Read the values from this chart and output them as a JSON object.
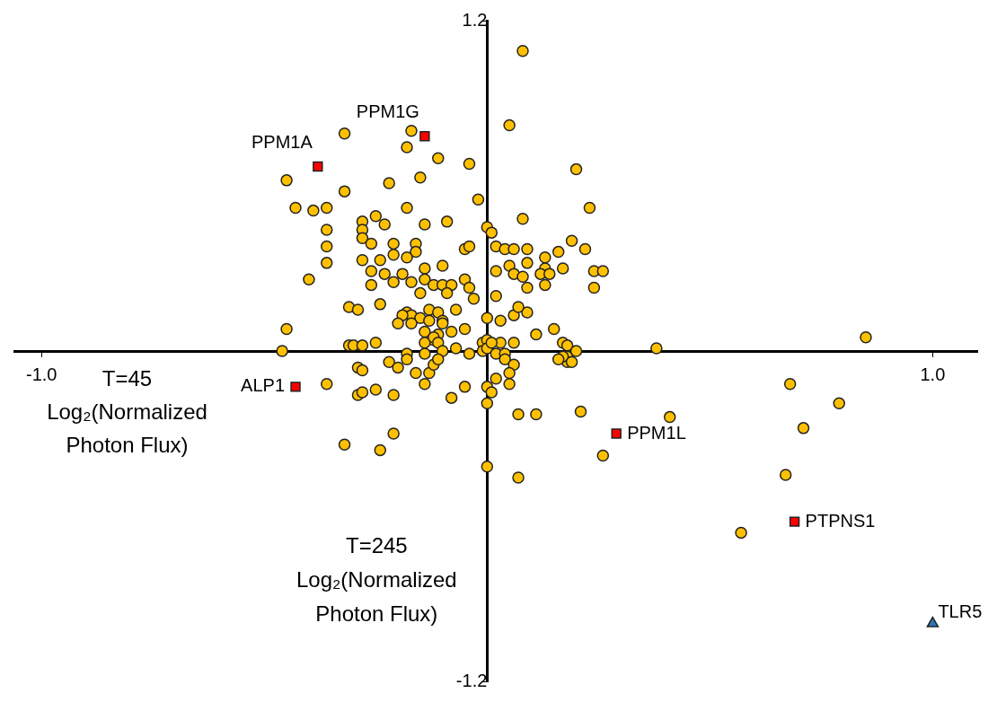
{
  "chart_data": {
    "type": "scatter",
    "xlabel": "T=45\nLog₂(Normalized\nPhoton Flux)",
    "ylabel": "T=245\nLog₂(Normalized\nPhoton Flux)",
    "xlim": [
      -1.06,
      1.1
    ],
    "ylim": [
      -1.2,
      1.2
    ],
    "xticks": [
      {
        "value": -1,
        "label": "-1.0"
      },
      {
        "value": 1,
        "label": "1.0"
      }
    ],
    "yticks": [
      -1.2,
      1.2
    ],
    "series": [
      {
        "color": "#ffc000",
        "marker": "circle",
        "x": [
          0.08,
          0.05,
          -0.17,
          -0.32,
          -0.18,
          -0.11,
          -0.15,
          -0.04,
          0.2,
          -0.45,
          -0.32,
          -0.22,
          -0.02,
          0.23,
          -0.43,
          -0.39,
          -0.36,
          -0.18,
          -0.09,
          0.08,
          0,
          0.01,
          -0.36,
          -0.28,
          -0.25,
          -0.23,
          -0.28,
          -0.14,
          0.19,
          0.22,
          -0.36,
          -0.05,
          -0.04,
          0.02,
          0.04,
          0.06,
          0.09,
          0.13,
          0.16,
          -0.36,
          -0.4,
          -0.28,
          -0.26,
          -0.21,
          -0.16,
          -0.16,
          -0.21,
          -0.28,
          -0.24,
          -0.18,
          -0.26,
          -0.23,
          -0.19,
          -0.14,
          -0.14,
          -0.1,
          -0.05,
          0.05,
          0.09,
          0.13,
          0.17,
          0.24,
          0.26,
          -0.26,
          -0.21,
          -0.17,
          -0.12,
          -0.1,
          -0.08,
          -0.04,
          0.02,
          0.06,
          0.08,
          0.12,
          0.14,
          0.09,
          0.13,
          0.24,
          0.09,
          -0.15,
          -0.09,
          -0.03,
          0.02,
          -0.31,
          -0.29,
          -0.24,
          -0.18,
          -0.13,
          -0.11,
          -0.17,
          -0.15,
          -0.13,
          -0.1,
          -0.07,
          -0.19,
          -0.2,
          -0.17,
          -0.1,
          -0.14,
          -0.11,
          -0.08,
          -0.12,
          -0.05,
          -0.01,
          0,
          0.03,
          0.06,
          0.07,
          0.11,
          0.15,
          0.17,
          0.18,
          0.18,
          0.18,
          0.17,
          0.16,
          0.19,
          0.2,
          -0.45,
          -0.46,
          -0.31,
          -0.3,
          -0.28,
          -0.25,
          -0.18,
          -0.14,
          -0.12,
          -0.11,
          -0.1,
          -0.07,
          -0.04,
          -0.01,
          0.03,
          0.06,
          0,
          0,
          0.01,
          0.02,
          0.04,
          0.38,
          0.85,
          -0.29,
          -0.28,
          -0.22,
          -0.2,
          -0.18,
          -0.14,
          -0.16,
          -0.13,
          -0.12,
          -0.11,
          0.04,
          0.06,
          -0.36,
          -0.29,
          -0.28,
          -0.25,
          -0.21,
          -0.14,
          -0.05,
          0,
          0.01,
          0.02,
          0.05,
          0.05,
          -0.08,
          0,
          0.07,
          0.11,
          0.21,
          0.41,
          -0.32,
          -0.21,
          -0.24,
          0.26,
          0,
          0.07,
          0.68,
          0.79,
          0.71,
          0.67,
          0.57
        ],
        "values": [
          1.09,
          0.82,
          0.8,
          0.79,
          0.74,
          0.7,
          0.63,
          0.68,
          0.66,
          0.62,
          0.58,
          0.61,
          0.55,
          0.52,
          0.52,
          0.51,
          0.52,
          0.52,
          0.47,
          0.48,
          0.45,
          0.43,
          0.44,
          0.47,
          0.49,
          0.46,
          0.44,
          0.46,
          0.4,
          0.37,
          0.38,
          0.37,
          0.38,
          0.38,
          0.37,
          0.37,
          0.37,
          0.34,
          0.36,
          0.32,
          0.26,
          0.41,
          0.39,
          0.39,
          0.39,
          0.36,
          0.35,
          0.33,
          0.33,
          0.34,
          0.29,
          0.28,
          0.28,
          0.3,
          0.26,
          0.31,
          0.26,
          0.31,
          0.32,
          0.3,
          0.3,
          0.29,
          0.29,
          0.24,
          0.25,
          0.25,
          0.24,
          0.24,
          0.24,
          0.23,
          0.29,
          0.28,
          0.27,
          0.28,
          0.28,
          0.23,
          0.24,
          0.23,
          0.14,
          0.21,
          0.21,
          0.19,
          0.2,
          0.16,
          0.15,
          0.17,
          0.14,
          0.15,
          0.14,
          0.13,
          0.12,
          0.11,
          0.11,
          0.15,
          0.13,
          0.1,
          0.1,
          0.1,
          0.07,
          0.06,
          0.07,
          0.04,
          0.08,
          0.03,
          0.12,
          0.11,
          0.13,
          0.16,
          0.06,
          0.08,
          0.03,
          0.02,
          -0.02,
          -0.04,
          -0.02,
          -0.03,
          -0.04,
          0,
          0.08,
          0,
          0.02,
          0.02,
          0.02,
          0.03,
          -0.01,
          0.03,
          0.05,
          0.03,
          0,
          0.01,
          -0.01,
          0,
          0.03,
          0.03,
          0.04,
          0.01,
          0.03,
          -0.01,
          -0.01,
          0.01,
          0.05,
          -0.06,
          -0.07,
          -0.04,
          -0.06,
          -0.03,
          -0.01,
          -0.08,
          -0.08,
          -0.05,
          -0.03,
          -0.03,
          -0.05,
          -0.12,
          -0.16,
          -0.15,
          -0.14,
          -0.16,
          -0.12,
          -0.13,
          -0.13,
          -0.15,
          -0.1,
          -0.08,
          -0.12,
          -0.17,
          -0.19,
          -0.23,
          -0.23,
          -0.22,
          -0.24,
          -0.34,
          -0.3,
          -0.36,
          -0.38,
          -0.42,
          -0.46,
          -0.12,
          -0.19,
          -0.28,
          -0.45,
          -0.66
        ]
      },
      {
        "color": "#ff0000",
        "marker": "square",
        "x": [
          -0.38,
          -0.14,
          -0.43,
          0.29,
          0.69
        ],
        "values": [
          0.67,
          0.78,
          -0.13,
          -0.3,
          -0.62
        ]
      },
      {
        "color": "#2e75b6",
        "marker": "triangle",
        "x": [
          1.0
        ],
        "values": [
          -0.99
        ]
      }
    ],
    "annotations": [
      {
        "text": "PPM1A",
        "x": -0.38,
        "y": 0.67
      },
      {
        "text": "PPM1G",
        "x": -0.14,
        "y": 0.78
      },
      {
        "text": "ALP1",
        "x": -0.43,
        "y": -0.13
      },
      {
        "text": "PPM1L",
        "x": 0.29,
        "y": -0.3
      },
      {
        "text": "PTPNS1",
        "x": 0.69,
        "y": -0.62
      },
      {
        "text": "TLR5",
        "x": 1.0,
        "y": -0.99
      }
    ]
  }
}
